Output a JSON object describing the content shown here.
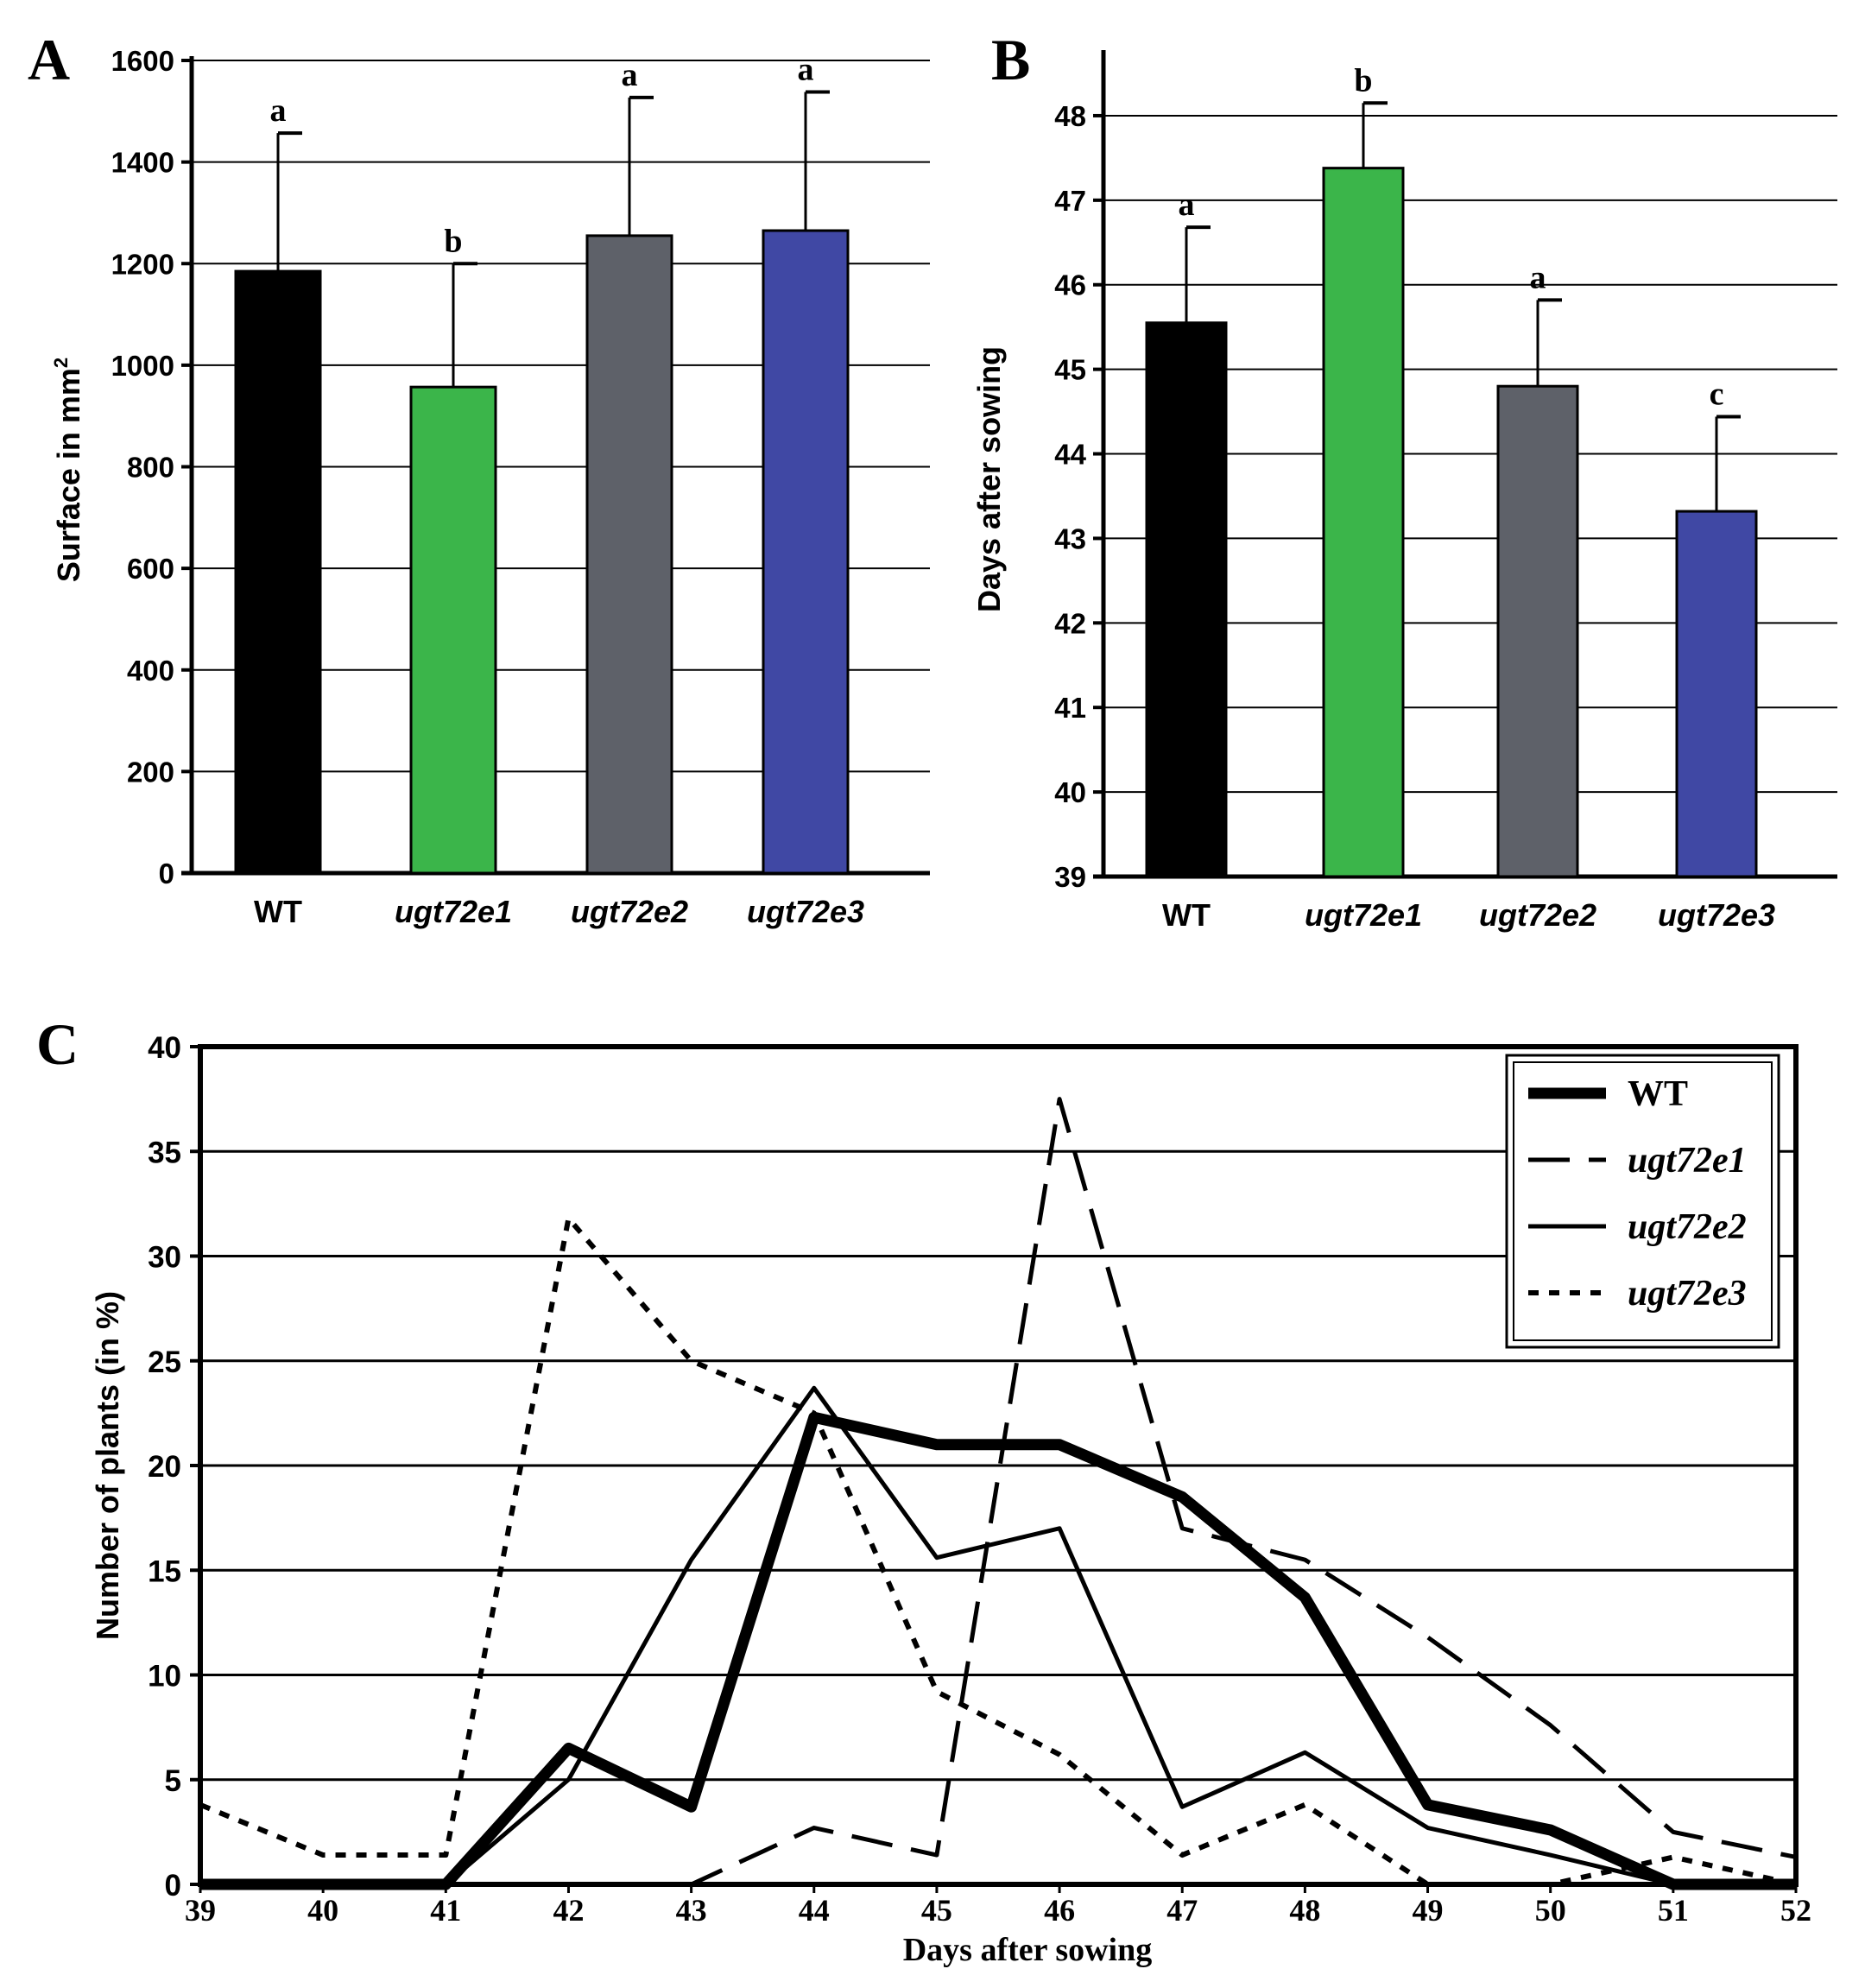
{
  "chart_data": [
    {
      "panel": "A",
      "type": "bar",
      "categories": [
        "WT",
        "ugt72e1",
        "ugt72e2",
        "ugt72e3"
      ],
      "values": [
        1185,
        957,
        1255,
        1265
      ],
      "errors": [
        272,
        243,
        272,
        273
      ],
      "significance": [
        "a",
        "b",
        "a",
        "a"
      ],
      "colors": [
        "#000000",
        "#3bb54a",
        "#5e6169",
        "#4048a4"
      ],
      "xlabel": "",
      "ylabel": "Surface in mm",
      "ylabel_sup": "2",
      "ylim": [
        0,
        1600
      ],
      "yticks": [
        "0",
        "200",
        "400",
        "600",
        "800",
        "1000",
        "1200",
        "1400",
        "1600"
      ],
      "grid": true
    },
    {
      "panel": "B",
      "type": "bar",
      "categories": [
        "WT",
        "ugt72e1",
        "ugt72e2",
        "ugt72e3"
      ],
      "values": [
        45.55,
        47.38,
        44.8,
        43.32
      ],
      "errors": [
        1.13,
        0.77,
        1.02,
        1.12
      ],
      "significance": [
        "a",
        "b",
        "a",
        "c"
      ],
      "colors": [
        "#000000",
        "#3bb54a",
        "#5e6169",
        "#4048a4"
      ],
      "xlabel": "",
      "ylabel": "Days after sowing",
      "ylim": [
        39,
        48.5
      ],
      "yticks": [
        "39",
        "40",
        "41",
        "42",
        "43",
        "44",
        "45",
        "46",
        "47",
        "48"
      ],
      "grid": true
    },
    {
      "panel": "C",
      "type": "line",
      "x": [
        39,
        40,
        41,
        42,
        43,
        44,
        45,
        46,
        47,
        48,
        49,
        50,
        51,
        52
      ],
      "xticks": [
        "39",
        "40",
        "41",
        "42",
        "43",
        "44",
        "45",
        "46",
        "47",
        "48",
        "49",
        "50",
        "51",
        "52"
      ],
      "series": [
        {
          "name": "WT",
          "style": "thick",
          "values": [
            0,
            0,
            0,
            6.5,
            3.7,
            22.3,
            21,
            21,
            18.5,
            13.7,
            3.8,
            2.6,
            0,
            0
          ]
        },
        {
          "name": "ugt72e1",
          "style": "dashed",
          "values": [
            0,
            0,
            0,
            0,
            0,
            2.7,
            1.4,
            37.5,
            17,
            15.5,
            11.8,
            7.6,
            2.5,
            1.3
          ]
        },
        {
          "name": "ugt72e2",
          "style": "solid",
          "values": [
            0,
            0,
            0,
            5,
            15.5,
            23.7,
            15.6,
            17,
            3.7,
            6.3,
            2.7,
            1.4,
            0,
            0
          ]
        },
        {
          "name": "ugt72e3",
          "style": "dotted",
          "values": [
            3.8,
            1.4,
            1.4,
            31.8,
            25,
            22.5,
            9.2,
            6.2,
            1.4,
            3.8,
            0,
            0,
            1.3,
            0
          ]
        }
      ],
      "xlabel": "Days after sowing",
      "ylabel": "Number of plants (in %)",
      "ylim": [
        0,
        40
      ],
      "yticks": [
        "0",
        "5",
        "10",
        "15",
        "20",
        "25",
        "30",
        "35",
        "40"
      ],
      "grid": true,
      "legend": "top-right"
    }
  ]
}
